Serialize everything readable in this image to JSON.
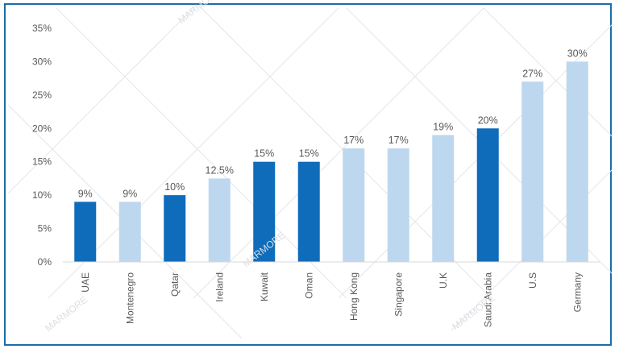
{
  "chart_data": {
    "type": "bar",
    "title": "",
    "xlabel": "",
    "ylabel": "",
    "categories": [
      "UAE",
      "Montenegro",
      "Qatar",
      "Ireland",
      "Kuwait",
      "Oman",
      "Hong Kong",
      "Singapore",
      "U.K",
      "Saudi Arabia",
      "U.S",
      "Germany"
    ],
    "values": [
      9,
      9,
      10,
      12.5,
      15,
      15,
      17,
      17,
      19,
      20,
      27,
      30
    ],
    "data_labels": [
      "9%",
      "9%",
      "10%",
      "12.5%",
      "15%",
      "15%",
      "17%",
      "17%",
      "19%",
      "20%",
      "27%",
      "30%"
    ],
    "highlighted": [
      true,
      false,
      true,
      false,
      true,
      true,
      false,
      false,
      false,
      true,
      false,
      false
    ],
    "ylim": [
      0,
      35
    ],
    "yticks": [
      0,
      5,
      10,
      15,
      20,
      25,
      30,
      35
    ],
    "ytick_labels": [
      "0%",
      "5%",
      "10%",
      "15%",
      "20%",
      "25%",
      "30%",
      "35%"
    ],
    "grid": false,
    "legend": "none",
    "colors": {
      "highlight": "#0f6cba",
      "normal": "#bdd7ee",
      "border": "#1b6ea8",
      "text": "#595959",
      "axis": "#d9d9d9"
    }
  },
  "watermark": "MARMORE"
}
